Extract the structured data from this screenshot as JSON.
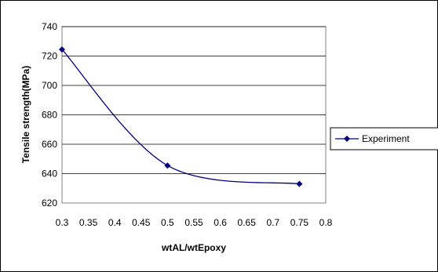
{
  "chart_data": {
    "type": "line",
    "title": "",
    "xlabel": "wtAL/wtEpoxy",
    "ylabel": "Tensile strength(MPa)",
    "xlim": [
      0.3,
      0.8
    ],
    "ylim": [
      620,
      740
    ],
    "x_ticks": [
      "0.3",
      "0.35",
      "0.4",
      "0.45",
      "0.5",
      "0.55",
      "0.6",
      "0.65",
      "0.7",
      "0.75",
      "0.8"
    ],
    "y_ticks": [
      "620",
      "640",
      "660",
      "680",
      "700",
      "720",
      "740"
    ],
    "grid": "horizontal",
    "smooth": true,
    "legend_position": "right",
    "marker": "diamond",
    "series": [
      {
        "name": "Experiment",
        "color": "#000080",
        "x": [
          0.3,
          0.5,
          0.75
        ],
        "y": [
          724.5,
          645.5,
          633
        ]
      }
    ]
  }
}
